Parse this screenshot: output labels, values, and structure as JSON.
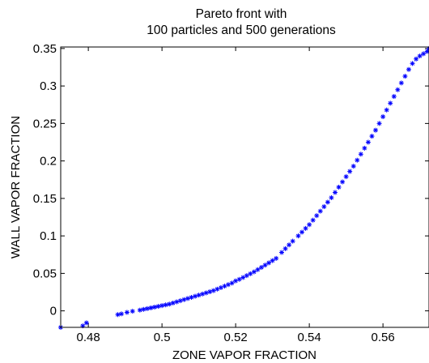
{
  "chart_data": {
    "type": "scatter",
    "title": [
      "Pareto front with",
      "100 particles and 500 generations"
    ],
    "xlabel": "ZONE VAPOR FRACTION",
    "ylabel": "WALL VAPOR FRACTION",
    "xlim": [
      0.4725,
      0.5725
    ],
    "ylim": [
      -0.022,
      0.352
    ],
    "xticks": [
      0.48,
      0.5,
      0.52,
      0.54,
      0.56
    ],
    "xtick_labels": [
      "0.48",
      "0.5",
      "0.52",
      "0.54",
      "0.56"
    ],
    "yticks": [
      0,
      0.05,
      0.1,
      0.15,
      0.2,
      0.25,
      0.3,
      0.35
    ],
    "ytick_labels": [
      "0",
      "0.05",
      "0.1",
      "0.15",
      "0.2",
      "0.25",
      "0.3",
      "0.35"
    ],
    "grid": false,
    "marker": "asterisk",
    "color": "#0000ff",
    "series": [
      {
        "points": [
          [
            0.4725,
            -0.022
          ],
          [
            0.4785,
            -0.02
          ],
          [
            0.4795,
            -0.016
          ],
          [
            0.488,
            -0.005
          ],
          [
            0.489,
            -0.004
          ],
          [
            0.4905,
            -0.002
          ],
          [
            0.492,
            -0.0005
          ],
          [
            0.494,
            0.001
          ],
          [
            0.495,
            0.002
          ],
          [
            0.496,
            0.003
          ],
          [
            0.497,
            0.004
          ],
          [
            0.498,
            0.005
          ],
          [
            0.499,
            0.006
          ],
          [
            0.5,
            0.007
          ],
          [
            0.501,
            0.008
          ],
          [
            0.502,
            0.009
          ],
          [
            0.503,
            0.0105
          ],
          [
            0.504,
            0.012
          ],
          [
            0.505,
            0.0135
          ],
          [
            0.506,
            0.015
          ],
          [
            0.507,
            0.0165
          ],
          [
            0.508,
            0.018
          ],
          [
            0.509,
            0.0195
          ],
          [
            0.51,
            0.021
          ],
          [
            0.511,
            0.0225
          ],
          [
            0.512,
            0.024
          ],
          [
            0.513,
            0.0255
          ],
          [
            0.514,
            0.027
          ],
          [
            0.515,
            0.029
          ],
          [
            0.516,
            0.031
          ],
          [
            0.517,
            0.033
          ],
          [
            0.518,
            0.035
          ],
          [
            0.519,
            0.037
          ],
          [
            0.52,
            0.04
          ],
          [
            0.521,
            0.042
          ],
          [
            0.522,
            0.0445
          ],
          [
            0.523,
            0.047
          ],
          [
            0.524,
            0.0495
          ],
          [
            0.525,
            0.052
          ],
          [
            0.526,
            0.055
          ],
          [
            0.527,
            0.058
          ],
          [
            0.528,
            0.061
          ],
          [
            0.529,
            0.064
          ],
          [
            0.53,
            0.067
          ],
          [
            0.531,
            0.07
          ],
          [
            0.5325,
            0.078
          ],
          [
            0.5335,
            0.083
          ],
          [
            0.5345,
            0.088
          ],
          [
            0.5355,
            0.093
          ],
          [
            0.537,
            0.1
          ],
          [
            0.538,
            0.105
          ],
          [
            0.539,
            0.11
          ],
          [
            0.54,
            0.115
          ],
          [
            0.541,
            0.121
          ],
          [
            0.542,
            0.127
          ],
          [
            0.543,
            0.133
          ],
          [
            0.544,
            0.139
          ],
          [
            0.545,
            0.145
          ],
          [
            0.546,
            0.151
          ],
          [
            0.547,
            0.158
          ],
          [
            0.548,
            0.165
          ],
          [
            0.549,
            0.172
          ],
          [
            0.55,
            0.179
          ],
          [
            0.551,
            0.186
          ],
          [
            0.552,
            0.193
          ],
          [
            0.553,
            0.201
          ],
          [
            0.554,
            0.209
          ],
          [
            0.555,
            0.217
          ],
          [
            0.556,
            0.225
          ],
          [
            0.557,
            0.233
          ],
          [
            0.558,
            0.241
          ],
          [
            0.559,
            0.25
          ],
          [
            0.56,
            0.259
          ],
          [
            0.561,
            0.268
          ],
          [
            0.562,
            0.277
          ],
          [
            0.563,
            0.286
          ],
          [
            0.564,
            0.295
          ],
          [
            0.565,
            0.304
          ],
          [
            0.566,
            0.313
          ],
          [
            0.567,
            0.322
          ],
          [
            0.568,
            0.33
          ],
          [
            0.569,
            0.336
          ],
          [
            0.57,
            0.34
          ],
          [
            0.571,
            0.343
          ],
          [
            0.572,
            0.346
          ],
          [
            0.5725,
            0.35
          ]
        ]
      }
    ]
  }
}
